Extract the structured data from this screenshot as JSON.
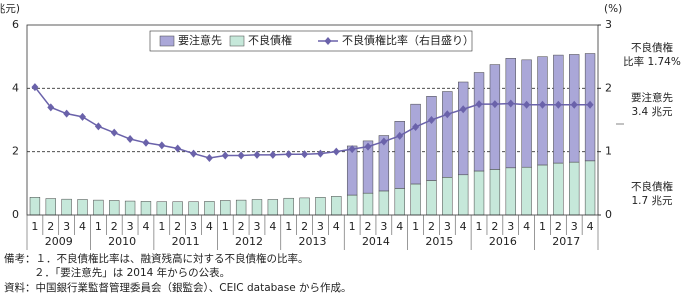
{
  "chart_data": {
    "type": "bar-line",
    "y_unit": "(兆元)",
    "y2_unit": "(%)",
    "categories": [
      "1",
      "2",
      "3",
      "4",
      "1",
      "2",
      "3",
      "4",
      "1",
      "2",
      "3",
      "4",
      "1",
      "2",
      "3",
      "4",
      "1",
      "2",
      "3",
      "4",
      "1",
      "2",
      "3",
      "4",
      "1",
      "2",
      "3",
      "4",
      "1",
      "2",
      "3",
      "4",
      "1",
      "2",
      "3",
      "4"
    ],
    "years": [
      "2009",
      "2010",
      "2011",
      "2012",
      "2013",
      "2014",
      "2015",
      "2016",
      "2017"
    ],
    "series": [
      {
        "name": "要注意先",
        "color": "#aaa7d8",
        "values": [
          null,
          null,
          null,
          null,
          null,
          null,
          null,
          null,
          null,
          null,
          null,
          null,
          null,
          null,
          null,
          null,
          null,
          null,
          null,
          null,
          1.55,
          1.65,
          1.75,
          2.12,
          2.52,
          2.66,
          2.71,
          2.93,
          3.11,
          3.31,
          3.46,
          3.39,
          3.42,
          3.41,
          3.4,
          3.39
        ]
      },
      {
        "name": "不良債権",
        "color": "#c6e8da",
        "values": [
          0.56,
          0.52,
          0.5,
          0.49,
          0.47,
          0.46,
          0.44,
          0.43,
          0.42,
          0.42,
          0.42,
          0.43,
          0.46,
          0.47,
          0.49,
          0.49,
          0.53,
          0.54,
          0.56,
          0.59,
          0.63,
          0.69,
          0.76,
          0.84,
          0.98,
          1.09,
          1.19,
          1.27,
          1.39,
          1.44,
          1.49,
          1.51,
          1.58,
          1.64,
          1.67,
          1.71
        ]
      },
      {
        "name": "不良債権比率（右目盛り）",
        "color": "#6a62aa",
        "axis": "y2",
        "values": [
          2.02,
          1.7,
          1.6,
          1.55,
          1.4,
          1.3,
          1.2,
          1.14,
          1.1,
          1.05,
          0.97,
          0.9,
          0.94,
          0.94,
          0.95,
          0.95,
          0.96,
          0.96,
          0.97,
          1.0,
          1.04,
          1.08,
          1.16,
          1.25,
          1.39,
          1.5,
          1.59,
          1.67,
          1.75,
          1.75,
          1.76,
          1.74,
          1.74,
          1.74,
          1.74,
          1.74
        ]
      }
    ],
    "ylim": [
      0,
      6
    ],
    "yticks": [
      0,
      2,
      4,
      6
    ],
    "y2lim": [
      0,
      3
    ],
    "y2ticks": [
      0,
      1,
      2,
      3
    ],
    "grid": true,
    "annotations": [
      {
        "lines": [
          "不良債権",
          "比率 1.74%"
        ]
      },
      {
        "lines": [
          "要注意先",
          "3.4 兆元"
        ]
      },
      {
        "lines": [
          "不良債権",
          "1.7 兆元"
        ]
      }
    ]
  },
  "notes": [
    "備考：１．不良債権比率は、融資残高に対する不良債権の比率。",
    "２．「要注意先」は 2014 年からの公表。",
    "資料：中国銀行業監督管理委員会（銀監会）、CEIC database から作成。"
  ]
}
